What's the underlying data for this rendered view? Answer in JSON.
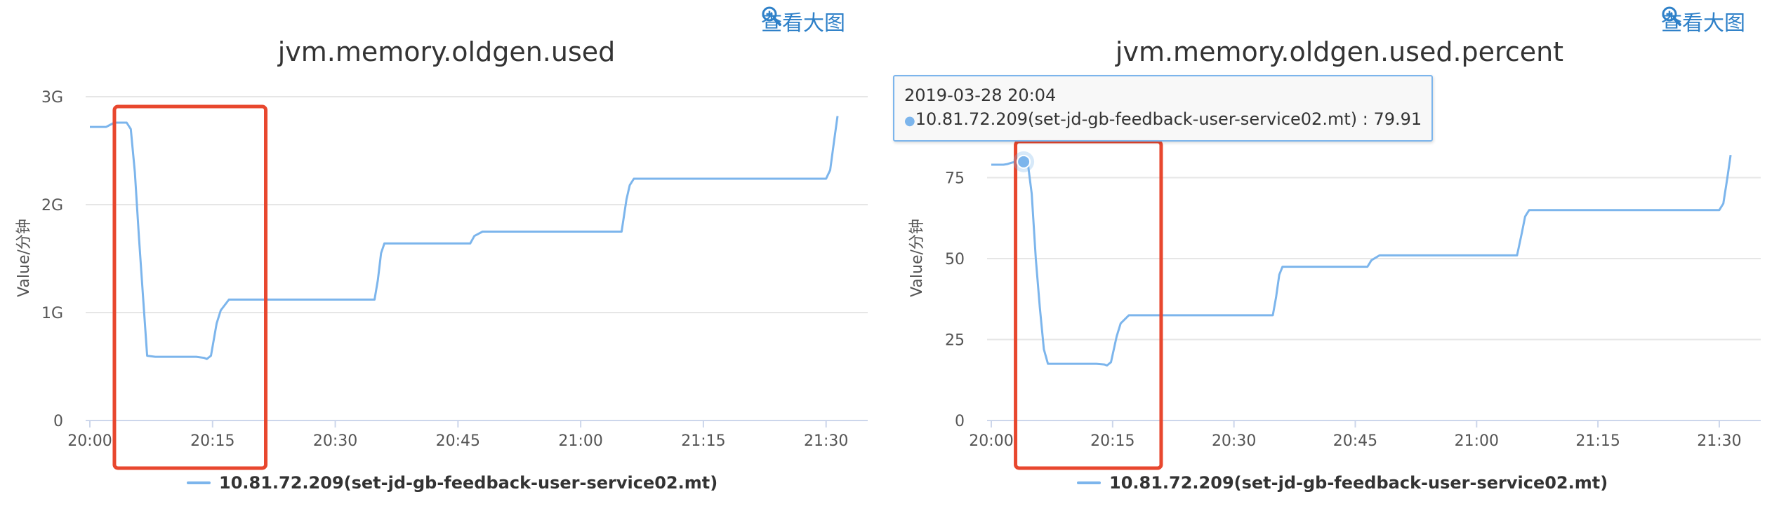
{
  "left_panel": {
    "zoom_label": "查看大图",
    "zoom_icon": "zoom-in-icon",
    "legend_label": "10.81.72.209(set-jd-gb-feedback-user-service02.mt)"
  },
  "right_panel": {
    "zoom_label": "查看大图",
    "zoom_icon": "zoom-in-icon",
    "legend_label": "10.81.72.209(set-jd-gb-feedback-user-service02.mt)",
    "tooltip": {
      "time": "2019-03-28 20:04",
      "series_label": "10.81.72.209(set-jd-gb-feedback-user-service02.mt) : 79.91"
    }
  },
  "colors": {
    "series": "#7cb5ec",
    "highlight_box": "#e8472e",
    "link": "#2e80c8"
  },
  "chart_data": [
    {
      "type": "line",
      "title": "jvm.memory.oldgen.used",
      "ylabel": "Value/分钟",
      "xlabel": "",
      "x_unit": "minutes after 20:00",
      "x_ticks": [
        "20:00",
        "20:15",
        "20:30",
        "20:45",
        "21:00",
        "21:15",
        "21:30"
      ],
      "y_ticks": [
        "0",
        "1G",
        "2G",
        "3G"
      ],
      "y_unit": "GB",
      "ylim": [
        0,
        3
      ],
      "xlim": [
        0,
        92
      ],
      "grid": true,
      "legend_position": "bottom-center",
      "series": [
        {
          "name": "10.81.72.209(set-jd-gb-feedback-user-service02.mt)",
          "x": [
            0,
            1.5,
            2,
            2.5,
            3,
            3.5,
            4,
            4.5,
            5,
            5.5,
            6,
            6.5,
            7,
            8,
            10,
            12,
            13,
            14,
            14.3,
            14.8,
            15.5,
            16,
            17,
            18,
            20,
            25,
            30,
            34.8,
            35.2,
            35.6,
            36,
            38,
            42,
            46.5,
            47,
            48,
            50,
            60,
            65,
            65.6,
            66,
            66.5,
            67,
            70,
            80,
            90,
            90.5,
            91,
            91.4
          ],
          "y": [
            2.72,
            2.72,
            2.72,
            2.74,
            2.76,
            2.76,
            2.76,
            2.76,
            2.7,
            2.3,
            1.7,
            1.15,
            0.6,
            0.59,
            0.59,
            0.59,
            0.59,
            0.58,
            0.57,
            0.6,
            0.9,
            1.02,
            1.12,
            1.12,
            1.12,
            1.12,
            1.12,
            1.12,
            1.3,
            1.55,
            1.64,
            1.64,
            1.64,
            1.64,
            1.71,
            1.75,
            1.75,
            1.75,
            1.75,
            2.05,
            2.18,
            2.24,
            2.24,
            2.24,
            2.24,
            2.24,
            2.32,
            2.6,
            2.82
          ]
        }
      ],
      "highlight_range": [
        3,
        21.5
      ]
    },
    {
      "type": "line",
      "title": "jvm.memory.oldgen.used.percent",
      "ylabel": "Value/分钟",
      "xlabel": "",
      "x_unit": "minutes after 20:00",
      "x_ticks": [
        "20:00",
        "20:15",
        "20:30",
        "20:45",
        "21:00",
        "21:15",
        "21:30"
      ],
      "y_ticks": [
        "0",
        "25",
        "50",
        "75"
      ],
      "ylim": [
        0,
        100
      ],
      "xlim": [
        0,
        92
      ],
      "grid": true,
      "legend_position": "bottom-center",
      "series": [
        {
          "name": "10.81.72.209(set-jd-gb-feedback-user-service02.mt)",
          "x": [
            0,
            1.5,
            2,
            2.5,
            3,
            3.5,
            4,
            4.5,
            5,
            5.5,
            6,
            6.5,
            7,
            8,
            10,
            12,
            13,
            14,
            14.3,
            14.8,
            15.5,
            16,
            17,
            18,
            20,
            25,
            30,
            34.8,
            35.2,
            35.6,
            36,
            38,
            42,
            46.5,
            47,
            48,
            50,
            60,
            65,
            65.6,
            66,
            66.5,
            67,
            70,
            80,
            90,
            90.5,
            91,
            91.4
          ],
          "y": [
            79,
            79,
            79.2,
            79.6,
            79.9,
            79.91,
            79.91,
            79.91,
            70,
            50,
            35,
            22,
            17.5,
            17.5,
            17.5,
            17.5,
            17.5,
            17.3,
            17,
            18,
            26,
            30,
            32.5,
            32.5,
            32.5,
            32.5,
            32.5,
            32.5,
            38,
            45,
            47.5,
            47.5,
            47.5,
            47.5,
            49.5,
            51,
            51,
            51,
            51,
            58,
            63,
            65,
            65,
            65,
            65,
            65,
            67,
            75,
            82
          ]
        }
      ],
      "highlight_range": [
        3,
        21
      ]
    }
  ]
}
